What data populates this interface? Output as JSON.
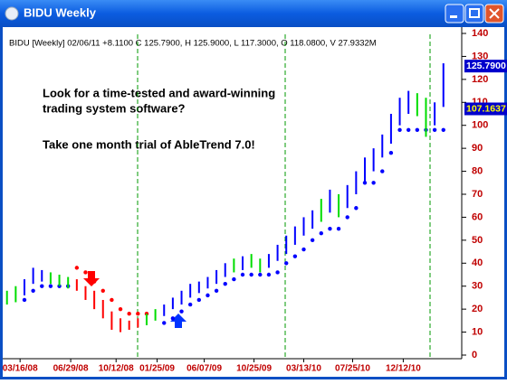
{
  "window": {
    "title": "BIDU Weekly"
  },
  "chart_data": {
    "type": "ohlc",
    "header": "BIDU [Weekly] 02/06/11 +8.1100 C 125.7900, H 125.9000, L 117.3000, O 118.0800, V 27.9332M",
    "annotations": [
      "Look for a time-tested and award-winning",
      "trading system software?",
      "Take one month trial of AbleTrend 7.0!"
    ],
    "high": [
      28,
      30,
      33,
      38,
      37,
      36,
      35,
      34,
      33,
      30,
      28,
      24,
      19,
      16,
      15,
      16,
      18,
      20,
      22,
      25,
      28,
      31,
      32,
      34,
      37,
      40,
      42,
      43,
      44,
      42,
      44,
      48,
      52,
      56,
      60,
      63,
      68,
      72,
      70,
      74,
      80,
      86,
      90,
      96,
      105,
      112,
      115,
      114,
      112,
      110,
      127
    ],
    "low": [
      22,
      23,
      26,
      31,
      32,
      31,
      30,
      29,
      28,
      24,
      20,
      16,
      11,
      10,
      11,
      12,
      13,
      15,
      17,
      20,
      22,
      25,
      27,
      29,
      31,
      34,
      36,
      37,
      38,
      36,
      38,
      41,
      44,
      48,
      52,
      55,
      58,
      62,
      60,
      64,
      70,
      75,
      80,
      86,
      92,
      100,
      105,
      104,
      95,
      100,
      108
    ],
    "bar_colors": [
      "#00dd00",
      "#00dd00",
      "#0000ff",
      "#0000ff",
      "#0000ff",
      "#00dd00",
      "#00dd00",
      "#00dd00",
      "#ff0000",
      "#ff0000",
      "#ff0000",
      "#ff0000",
      "#ff0000",
      "#ff0000",
      "#ff0000",
      "#ff0000",
      "#00dd00",
      "#00dd00",
      "#0000ff",
      "#0000ff",
      "#0000ff",
      "#0000ff",
      "#0000ff",
      "#0000ff",
      "#0000ff",
      "#0000ff",
      "#00dd00",
      "#0000ff",
      "#00dd00",
      "#00dd00",
      "#0000ff",
      "#0000ff",
      "#0000ff",
      "#0000ff",
      "#0000ff",
      "#0000ff",
      "#00dd00",
      "#0000ff",
      "#00dd00",
      "#0000ff",
      "#0000ff",
      "#0000ff",
      "#0000ff",
      "#0000ff",
      "#0000ff",
      "#0000ff",
      "#0000ff",
      "#00dd00",
      "#00dd00",
      "#0000ff",
      "#0000ff"
    ],
    "stops": [
      null,
      null,
      24,
      28,
      30,
      30,
      30,
      30,
      38,
      36,
      32,
      28,
      24,
      20,
      18,
      18,
      18,
      null,
      14,
      16,
      19,
      22,
      24,
      26,
      28,
      31,
      33,
      35,
      35,
      35,
      35,
      36,
      40,
      43,
      46,
      50,
      53,
      55,
      55,
      60,
      64,
      75,
      75,
      80,
      88,
      98,
      98,
      98,
      98,
      98,
      98
    ],
    "stop_colors": [
      null,
      null,
      "#0000ff",
      "#0000ff",
      "#0000ff",
      "#0000ff",
      "#0000ff",
      "#0000ff",
      "#ff0000",
      "#ff0000",
      "#ff0000",
      "#ff0000",
      "#ff0000",
      "#ff0000",
      "#ff0000",
      "#ff0000",
      "#ff0000",
      null,
      "#0000ff",
      "#0000ff",
      "#0000ff",
      "#0000ff",
      "#0000ff",
      "#0000ff",
      "#0000ff",
      "#0000ff",
      "#0000ff",
      "#0000ff",
      "#0000ff",
      "#0000ff",
      "#0000ff",
      "#0000ff",
      "#0000ff",
      "#0000ff",
      "#0000ff",
      "#0000ff",
      "#0000ff",
      "#0000ff",
      "#0000ff",
      "#0000ff",
      "#0000ff",
      "#0000ff",
      "#0000ff",
      "#0000ff",
      "#0000ff",
      "#0000ff",
      "#0000ff",
      "#0000ff",
      "#0000ff",
      "#0000ff",
      "#0000ff"
    ],
    "ylim": [
      0,
      140
    ],
    "yticks": [
      0,
      10,
      20,
      30,
      40,
      50,
      60,
      70,
      80,
      90,
      100,
      110,
      120,
      130,
      140
    ],
    "xlim": [
      -0.8,
      52.1
    ],
    "xticks": [
      {
        "value": 1.5,
        "label": "03/16/08"
      },
      {
        "value": 7.3,
        "label": "06/29/08"
      },
      {
        "value": 12.5,
        "label": "10/12/08"
      },
      {
        "value": 17.2,
        "label": "01/25/09"
      },
      {
        "value": 22.6,
        "label": "06/07/09"
      },
      {
        "value": 28.3,
        "label": "10/25/09"
      },
      {
        "value": 34,
        "label": "03/13/10"
      },
      {
        "value": 39.6,
        "label": "07/25/10"
      },
      {
        "value": 45.4,
        "label": "12/12/10"
      }
    ],
    "price_tags": [
      {
        "value": 125.79,
        "label": "125.7900",
        "color": "#0000cc",
        "text_color": "#ffffff"
      },
      {
        "value": 107.1637,
        "label": "107.1637",
        "color": "#0000cc",
        "text_color": "#ffff00"
      }
    ]
  }
}
